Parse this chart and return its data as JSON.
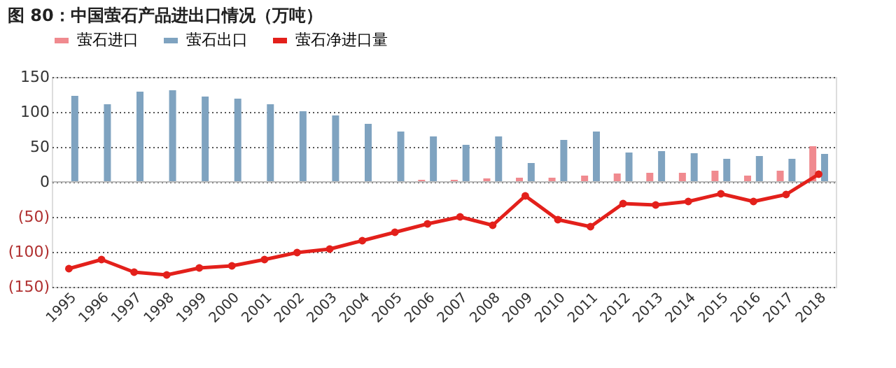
{
  "chart_data": {
    "type": "bar",
    "title": "图 80：中国萤石产品进出口情况（万吨）",
    "categories": [
      "1995",
      "1996",
      "1997",
      "1998",
      "1999",
      "2000",
      "2001",
      "2002",
      "2003",
      "2004",
      "2005",
      "2006",
      "2007",
      "2008",
      "2009",
      "2010",
      "2011",
      "2012",
      "2013",
      "2014",
      "2015",
      "2016",
      "2017",
      "2018"
    ],
    "series": [
      {
        "name": "萤石进口",
        "color": "#f08a8f",
        "values": [
          1,
          1,
          1,
          1,
          1,
          1,
          1,
          1,
          1,
          1,
          1,
          3,
          3,
          5,
          6,
          6,
          9,
          12,
          13,
          13,
          16,
          9,
          16,
          51
        ]
      },
      {
        "name": "萤石出口",
        "color": "#7fa3c0",
        "values": [
          123,
          111,
          129,
          131,
          122,
          119,
          111,
          101,
          95,
          83,
          72,
          65,
          53,
          65,
          27,
          60,
          72,
          42,
          44,
          41,
          33,
          37,
          33,
          40
        ]
      },
      {
        "name": "萤石净进口量",
        "type": "line",
        "color": "#e3201b",
        "marker": "circle",
        "values": [
          -124,
          -111,
          -129,
          -133,
          -123,
          -120,
          -111,
          -101,
          -96,
          -84,
          -72,
          -60,
          -50,
          -62,
          -20,
          -54,
          -64,
          -31,
          -33,
          -28,
          -17,
          -28,
          -18,
          11
        ]
      }
    ],
    "ylim": [
      -150,
      150
    ],
    "yticks": [
      150,
      100,
      50,
      0,
      {
        "value": -50,
        "label": "(50)"
      },
      {
        "value": -100,
        "label": "(100)"
      },
      {
        "value": -150,
        "label": "(150)"
      }
    ],
    "grid": "y",
    "legend": "top"
  }
}
